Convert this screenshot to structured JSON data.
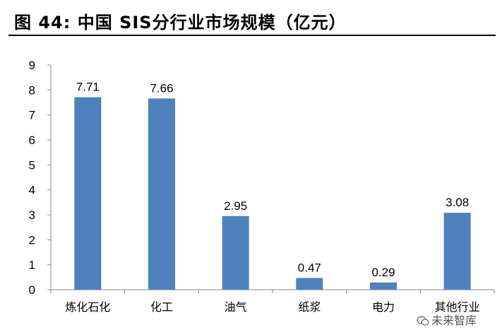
{
  "figure": {
    "number": "图 44:",
    "title": "中国 SIS分行业市场规模（亿元）"
  },
  "watermark": {
    "text": "未来智库",
    "icon": "wechat-icon"
  },
  "chart_data": {
    "type": "bar",
    "categories": [
      "炼化石化",
      "化工",
      "油气",
      "纸浆",
      "电力",
      "其他行业"
    ],
    "values": [
      7.71,
      7.66,
      2.95,
      0.47,
      0.29,
      3.08
    ],
    "data_labels": [
      "7.71",
      "7.66",
      "2.95",
      "0.47",
      "0.29",
      "3.08"
    ],
    "ylim": [
      0,
      9
    ],
    "yticks": [
      "0",
      "1",
      "2",
      "3",
      "4",
      "5",
      "6",
      "7",
      "8",
      "9"
    ],
    "bar_color": "#4F81BD",
    "grid": false,
    "legend": "none"
  }
}
